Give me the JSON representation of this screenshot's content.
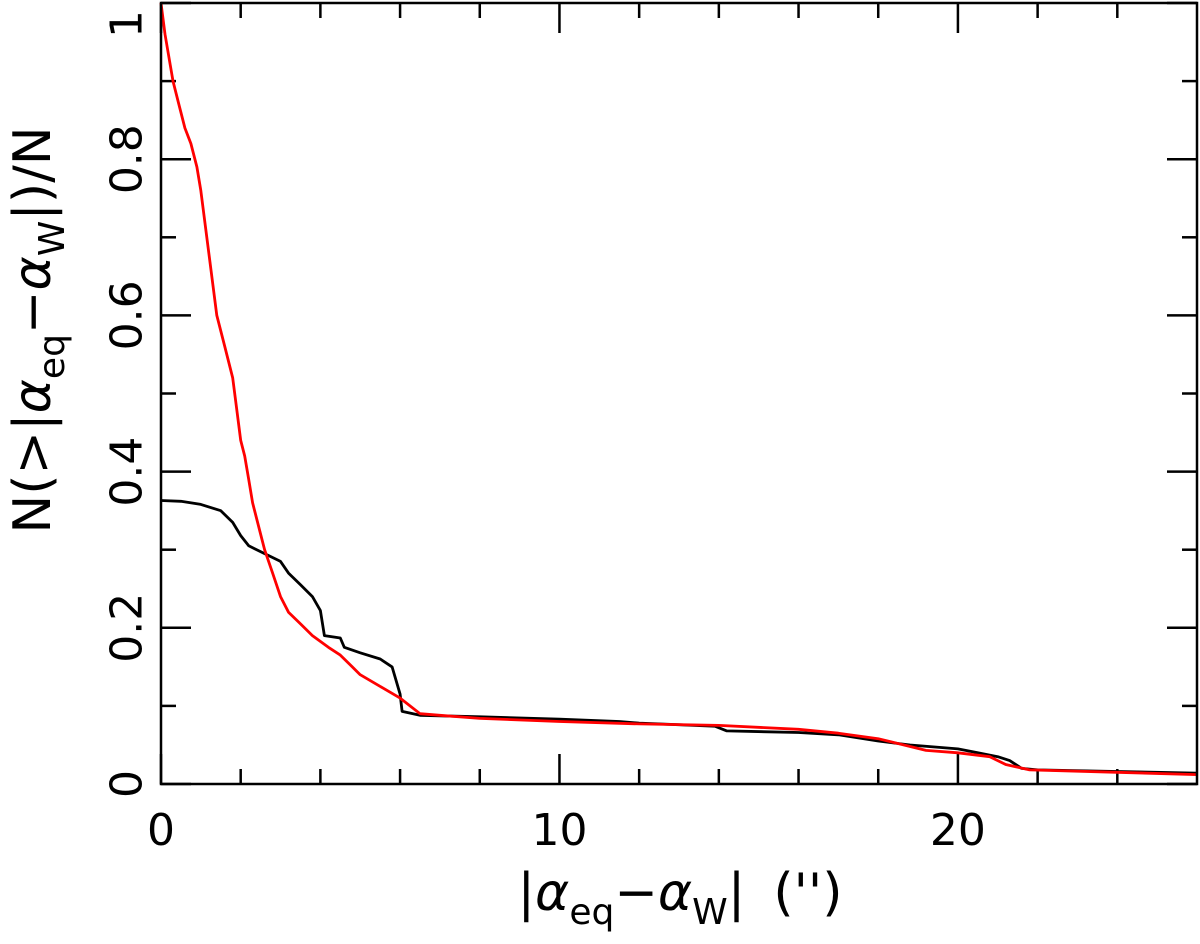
{
  "chart_data": {
    "type": "line",
    "title": "",
    "xlabel": {
      "prefix": "|",
      "alpha1": "α",
      "sub1": "eq",
      "minus": "−",
      "alpha2": "α",
      "sub2": "W",
      "suffix": "|",
      "unit": "('')"
    },
    "ylabel": {
      "prefix": "N(>|",
      "alpha1": "α",
      "sub1": "eq",
      "minus": "−",
      "alpha2": "α",
      "sub2": "W",
      "suffix": "|)/N"
    },
    "xlim": [
      0,
      26
    ],
    "ylim": [
      0,
      1
    ],
    "x_ticks_major": [
      0,
      10,
      20
    ],
    "x_tick_labels": [
      "0",
      "10",
      "20"
    ],
    "x_ticks_minor": [
      2,
      4,
      6,
      8,
      12,
      14,
      16,
      18,
      22,
      24
    ],
    "y_ticks_major": [
      0,
      0.2,
      0.4,
      0.6,
      0.8,
      1
    ],
    "y_tick_labels": [
      "0",
      "0.2",
      "0.4",
      "0.6",
      "0.8",
      "1"
    ],
    "y_ticks_minor": [
      0.1,
      0.3,
      0.5,
      0.7,
      0.9
    ],
    "grid": false,
    "series": [
      {
        "color": "#000000",
        "points": [
          [
            0,
            0.363
          ],
          [
            0.5,
            0.362
          ],
          [
            1.0,
            0.358
          ],
          [
            1.5,
            0.35
          ],
          [
            1.8,
            0.335
          ],
          [
            2.0,
            0.318
          ],
          [
            2.2,
            0.305
          ],
          [
            2.6,
            0.295
          ],
          [
            3.0,
            0.285
          ],
          [
            3.2,
            0.27
          ],
          [
            3.5,
            0.255
          ],
          [
            3.8,
            0.24
          ],
          [
            4.0,
            0.222
          ],
          [
            4.1,
            0.19
          ],
          [
            4.5,
            0.187
          ],
          [
            4.6,
            0.175
          ],
          [
            5.0,
            0.168
          ],
          [
            5.5,
            0.16
          ],
          [
            5.8,
            0.15
          ],
          [
            6.0,
            0.115
          ],
          [
            6.05,
            0.093
          ],
          [
            6.5,
            0.088
          ],
          [
            8,
            0.086
          ],
          [
            10,
            0.083
          ],
          [
            11.5,
            0.08
          ],
          [
            12,
            0.078
          ],
          [
            13.9,
            0.074
          ],
          [
            14.2,
            0.068
          ],
          [
            16,
            0.066
          ],
          [
            17,
            0.063
          ],
          [
            18,
            0.055
          ],
          [
            18.8,
            0.05
          ],
          [
            20,
            0.045
          ],
          [
            20.5,
            0.04
          ],
          [
            21.0,
            0.035
          ],
          [
            21.3,
            0.03
          ],
          [
            21.6,
            0.02
          ],
          [
            22,
            0.018
          ],
          [
            24,
            0.016
          ],
          [
            26,
            0.014
          ]
        ]
      },
      {
        "color": "#ff0000",
        "points": [
          [
            0,
            1.0
          ],
          [
            0.1,
            0.96
          ],
          [
            0.2,
            0.93
          ],
          [
            0.3,
            0.9
          ],
          [
            0.45,
            0.87
          ],
          [
            0.6,
            0.84
          ],
          [
            0.75,
            0.82
          ],
          [
            0.9,
            0.79
          ],
          [
            1.0,
            0.76
          ],
          [
            1.1,
            0.72
          ],
          [
            1.2,
            0.68
          ],
          [
            1.3,
            0.64
          ],
          [
            1.4,
            0.6
          ],
          [
            1.6,
            0.56
          ],
          [
            1.8,
            0.52
          ],
          [
            1.9,
            0.48
          ],
          [
            2.0,
            0.44
          ],
          [
            2.1,
            0.42
          ],
          [
            2.2,
            0.39
          ],
          [
            2.3,
            0.36
          ],
          [
            2.4,
            0.34
          ],
          [
            2.5,
            0.32
          ],
          [
            2.6,
            0.3
          ],
          [
            2.8,
            0.27
          ],
          [
            3.0,
            0.24
          ],
          [
            3.2,
            0.22
          ],
          [
            3.5,
            0.205
          ],
          [
            3.8,
            0.19
          ],
          [
            4.2,
            0.175
          ],
          [
            4.5,
            0.165
          ],
          [
            4.8,
            0.15
          ],
          [
            5.0,
            0.14
          ],
          [
            5.5,
            0.125
          ],
          [
            6.0,
            0.11
          ],
          [
            6.5,
            0.09
          ],
          [
            7,
            0.088
          ],
          [
            8,
            0.084
          ],
          [
            10,
            0.08
          ],
          [
            12,
            0.077
          ],
          [
            14,
            0.075
          ],
          [
            16,
            0.07
          ],
          [
            17,
            0.065
          ],
          [
            18,
            0.058
          ],
          [
            18.8,
            0.048
          ],
          [
            19.2,
            0.043
          ],
          [
            20,
            0.04
          ],
          [
            20.8,
            0.035
          ],
          [
            21.2,
            0.025
          ],
          [
            21.8,
            0.018
          ],
          [
            24,
            0.015
          ],
          [
            26,
            0.012
          ]
        ]
      }
    ]
  }
}
